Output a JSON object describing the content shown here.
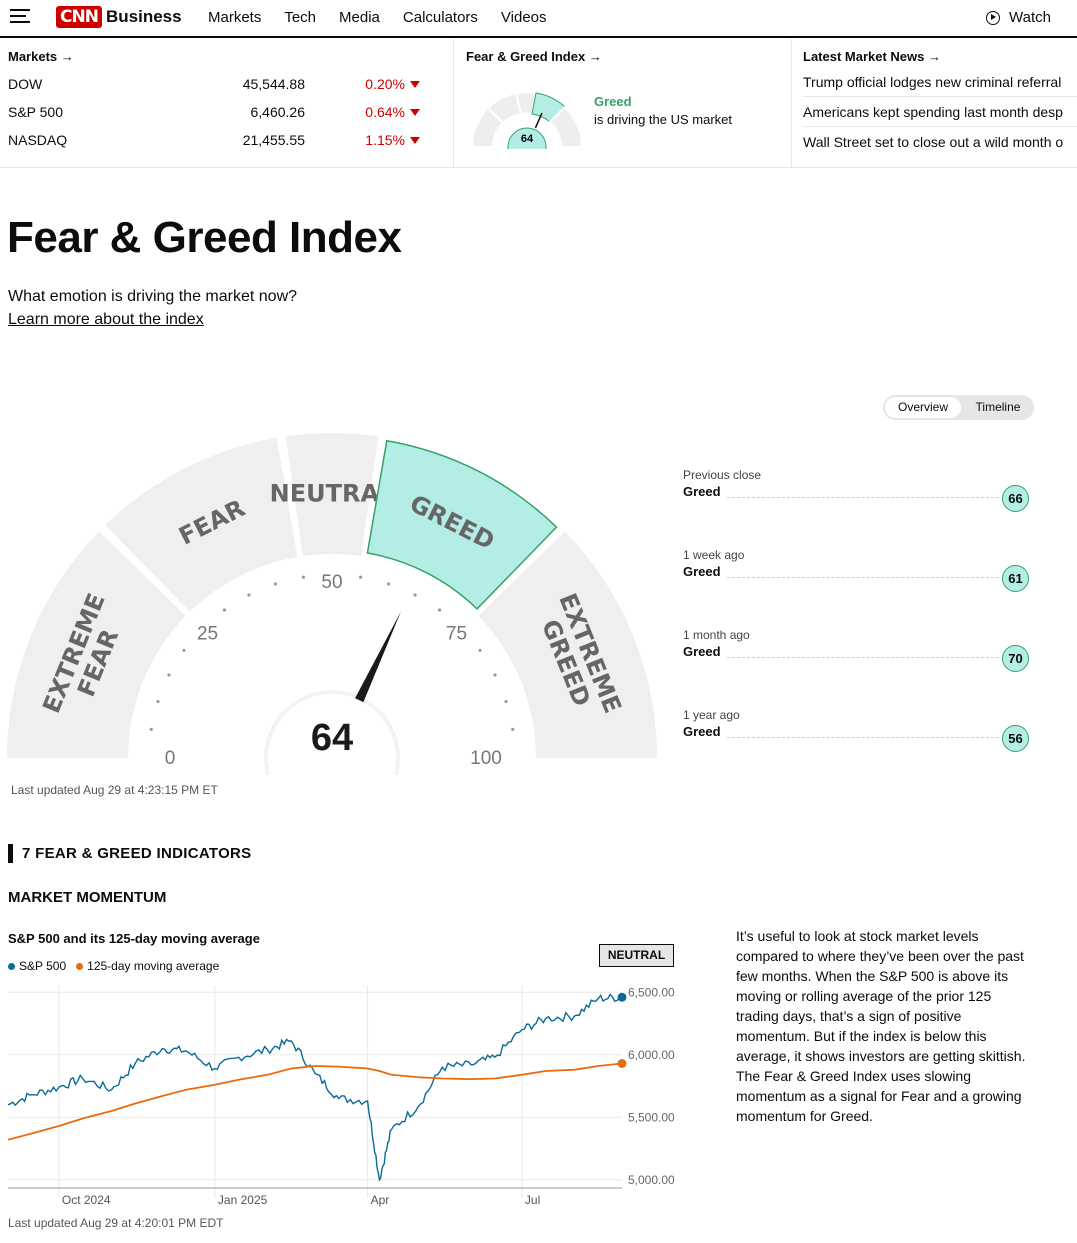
{
  "header": {
    "logo": "CNN",
    "brand": "Business",
    "nav": [
      "Markets",
      "Tech",
      "Media",
      "Calculators",
      "Videos"
    ],
    "watch": "Watch"
  },
  "markets": {
    "heading": "Markets →",
    "rows": [
      {
        "name": "DOW",
        "value": "45,544.88",
        "change": "0.20%"
      },
      {
        "name": "S&P 500",
        "value": "6,460.26",
        "change": "0.64%"
      },
      {
        "name": "NASDAQ",
        "value": "21,455.55",
        "change": "1.15%"
      }
    ],
    "down_color": "#cc0000"
  },
  "fg_mini": {
    "heading": "Fear & Greed Index →",
    "value": "64",
    "status": "Greed",
    "text": "is driving the US market"
  },
  "news": {
    "heading": "Latest Market News →",
    "items": [
      "Trump official lodges new criminal referral",
      "Americans kept spending last month desp",
      "Wall Street set to close out a wild month o"
    ]
  },
  "page": {
    "title": "Fear & Greed Index",
    "subtitle": "What emotion is driving the market now?",
    "learn_more": "Learn more about the index"
  },
  "toggle": {
    "overview": "Overview",
    "timeline": "Timeline"
  },
  "gauge": {
    "value": 64,
    "value_label": "64",
    "segments": [
      "EXTREME FEAR",
      "FEAR",
      "NEUTRAL",
      "GREED",
      "EXTREME GREED"
    ],
    "active_segment": "GREED",
    "ticks": [
      "0",
      "25",
      "50",
      "75",
      "100"
    ],
    "active_color": "#b4ede6",
    "active_border": "#36a269"
  },
  "history": [
    {
      "label": "Previous close",
      "status": "Greed",
      "value": "66"
    },
    {
      "label": "1 week ago",
      "status": "Greed",
      "value": "61"
    },
    {
      "label": "1 month ago",
      "status": "Greed",
      "value": "70"
    },
    {
      "label": "1 year ago",
      "status": "Greed",
      "value": "56"
    }
  ],
  "last_updated": "Last updated Aug 29 at 4:23:15 PM ET",
  "indicators_heading": "7 FEAR & GREED INDICATORS",
  "momentum": {
    "heading": "MARKET MOMENTUM",
    "chart_title": "S&P 500 and its 125-day moving average",
    "badge": "NEUTRAL",
    "description": "It’s useful to look at stock market levels compared to where they’ve been over the past few months. When the S&P 500 is above its moving or rolling average of the prior 125 trading days, that’s a sign of positive momentum. But if the index is below this average, it shows investors are getting skittish. The Fear & Greed Index uses slowing momentum as a signal for Fear and a growing momentum for Greed.",
    "updated": "Last updated Aug 29 at 4:20:01 PM EDT"
  },
  "chart_data": {
    "type": "line",
    "x": [
      "2024-09-01",
      "2024-09-15",
      "2024-10-01",
      "2024-10-15",
      "2024-11-01",
      "2024-11-15",
      "2024-12-01",
      "2024-12-15",
      "2025-01-01",
      "2025-01-15",
      "2025-02-01",
      "2025-02-15",
      "2025-03-01",
      "2025-03-15",
      "2025-04-01",
      "2025-04-08",
      "2025-04-15",
      "2025-05-01",
      "2025-05-15",
      "2025-06-01",
      "2025-06-15",
      "2025-07-01",
      "2025-07-15",
      "2025-08-01",
      "2025-08-15",
      "2025-08-29"
    ],
    "series": [
      {
        "name": "S&P 500",
        "color": "#0a6b95",
        "values": [
          5600,
          5680,
          5740,
          5810,
          5720,
          5930,
          6050,
          6030,
          5890,
          5980,
          6040,
          6110,
          5850,
          5650,
          5630,
          5000,
          5400,
          5590,
          5900,
          5920,
          5980,
          6200,
          6290,
          6310,
          6450,
          6460
        ]
      },
      {
        "name": "125-day moving average",
        "color": "#e86b10",
        "values": [
          5320,
          5370,
          5430,
          5490,
          5550,
          5610,
          5670,
          5720,
          5760,
          5800,
          5840,
          5890,
          5910,
          5905,
          5890,
          5870,
          5840,
          5820,
          5810,
          5805,
          5810,
          5840,
          5870,
          5880,
          5910,
          5930
        ]
      }
    ],
    "xlabels": [
      "Oct 2024",
      "Jan 2025",
      "Apr",
      "Jul"
    ],
    "ylabels": [
      "6,500.00",
      "6,000.00",
      "5,500.00",
      "5,000.00"
    ],
    "ylim": [
      4950,
      6550
    ]
  }
}
